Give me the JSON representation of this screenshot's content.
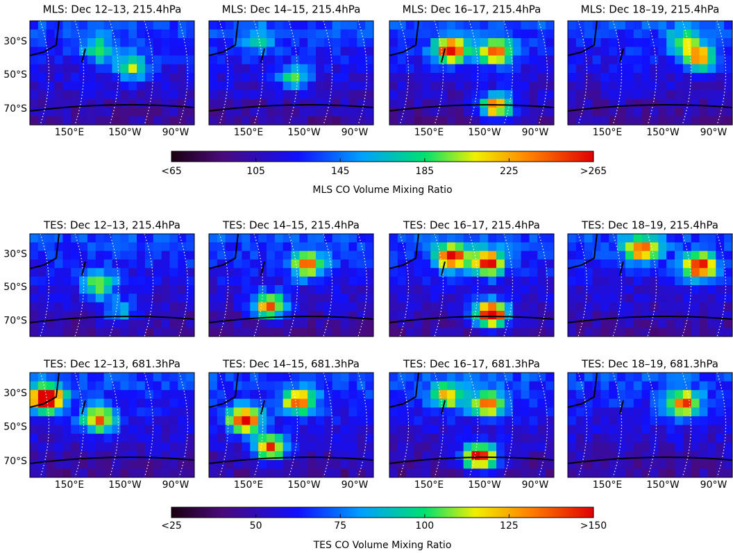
{
  "rows": [
    {
      "panels": [
        {
          "title": "MLS: Dec 12–13, 215.4hPa"
        },
        {
          "title": "MLS: Dec 14–15, 215.4hPa"
        },
        {
          "title": "MLS: Dec 16–17, 215.4hPa"
        },
        {
          "title": "MLS: Dec 18–19, 215.4hPa"
        }
      ]
    },
    {
      "panels": [
        {
          "title": "TES: Dec 12–13, 215.4hPa"
        },
        {
          "title": "TES: Dec 14–15, 215.4hPa"
        },
        {
          "title": "TES: Dec 16–17, 215.4hPa"
        },
        {
          "title": "TES: Dec 18–19, 215.4hPa"
        }
      ]
    },
    {
      "panels": [
        {
          "title": "TES: Dec 12–13, 681.3hPa"
        },
        {
          "title": "TES: Dec 14–15, 681.3hPa"
        },
        {
          "title": "TES: Dec 16–17, 681.3hPa"
        },
        {
          "title": "TES: Dec 18–19, 681.3hPa"
        }
      ]
    }
  ],
  "lat_labels": [
    "30°S",
    "50°S",
    "70°S"
  ],
  "lon_labels": [
    "150°E",
    "150°W",
    "90°W"
  ],
  "colorbars": [
    {
      "label": "MLS CO Volume Mixing Ratio",
      "lim": [
        65,
        265
      ],
      "ticks": [
        {
          "value": 65,
          "label": "<65"
        },
        105,
        145,
        185,
        225,
        {
          "value": 265,
          "label": ">265"
        }
      ]
    },
    {
      "label": "TES CO Volume Mixing Ratio",
      "lim": [
        25,
        150
      ],
      "ticks": [
        {
          "value": 25,
          "label": "<25"
        },
        50,
        75,
        100,
        125,
        {
          "value": 150,
          "label": ">150"
        }
      ]
    }
  ]
}
